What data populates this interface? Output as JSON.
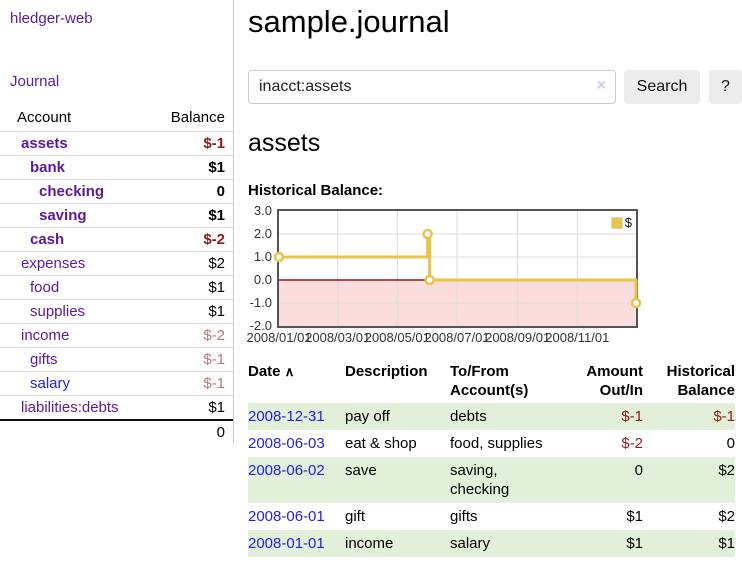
{
  "app": {
    "title": "hledger-web"
  },
  "colors": {
    "link_purple": "#5b1a9b",
    "link_blue": "#2323dd",
    "negative": "#8e1b1b",
    "faded_negative": "#bb7777",
    "stripe_green": "#e2efd9",
    "series_gold": "#e8c44a"
  },
  "sidebar": {
    "journal_link": "Journal",
    "table": {
      "account_header": "Account",
      "balance_header": "Balance",
      "accounts": [
        {
          "name": "assets",
          "balance": "$-1",
          "depth": 1
        },
        {
          "name": "bank",
          "balance": "$1",
          "depth": 2
        },
        {
          "name": "checking",
          "balance": "0",
          "depth": 3
        },
        {
          "name": "saving",
          "balance": "$1",
          "depth": 3
        },
        {
          "name": "cash",
          "balance": "$-2",
          "depth": 2
        },
        {
          "name": "expenses",
          "balance": "$2",
          "depth": 1
        },
        {
          "name": "food",
          "balance": "$1",
          "depth": 2
        },
        {
          "name": "supplies",
          "balance": "$1",
          "depth": 2
        },
        {
          "name": "income",
          "balance": "$-2",
          "depth": 1
        },
        {
          "name": "gifts",
          "balance": "$-1",
          "depth": 2
        },
        {
          "name": "salary",
          "balance": "$-1",
          "depth": 2
        },
        {
          "name": "liabilities:debts",
          "balance": "$1",
          "depth": 1
        }
      ],
      "total": "0"
    }
  },
  "main": {
    "title": "sample.journal",
    "search": {
      "value": "inacct:assets",
      "clear_icon": "×",
      "button_label": "Search",
      "help_label": "?"
    },
    "account_heading": "assets",
    "chart_label": "Historical Balance:"
  },
  "chart_data": {
    "type": "line",
    "step": true,
    "title": "Historical Balance",
    "series": [
      {
        "name": "$",
        "color": "#e8c44a",
        "points": [
          [
            "2008-01-01",
            1
          ],
          [
            "2008-06-01",
            2
          ],
          [
            "2008-06-03",
            0
          ],
          [
            "2008-12-31",
            -1
          ]
        ]
      }
    ],
    "ylim": [
      -2,
      3
    ],
    "yticks": [
      3.0,
      2.0,
      1.0,
      0.0,
      -1.0,
      -2.0
    ],
    "xticks": [
      "2008/01/01",
      "2008/03/01",
      "2008/05/01",
      "2008/07/01",
      "2008/09/01",
      "2008/11/01"
    ],
    "grid": true,
    "negative_fill": "#fbdddd",
    "zero_line_color": "#9e1414",
    "legend": {
      "position": "top-right",
      "label": "$"
    }
  },
  "register": {
    "headers": {
      "date": "Date",
      "sort_indicator": "∧",
      "description": "Description",
      "accounts": "To/From Account(s)",
      "amount": "Amount Out/In",
      "balance": "Historical Balance"
    },
    "rows": [
      {
        "date": "2008-12-31",
        "description": "pay off",
        "accounts": "debts",
        "amount": "$-1",
        "balance": "$-1"
      },
      {
        "date": "2008-06-03",
        "description": "eat & shop",
        "accounts": "food, supplies",
        "amount": "$-2",
        "balance": "0"
      },
      {
        "date": "2008-06-02",
        "description": "save",
        "accounts": "saving, checking",
        "amount": "0",
        "balance": "$2"
      },
      {
        "date": "2008-06-01",
        "description": "gift",
        "accounts": "gifts",
        "amount": "$1",
        "balance": "$2"
      },
      {
        "date": "2008-01-01",
        "description": "income",
        "accounts": "salary",
        "amount": "$1",
        "balance": "$1"
      }
    ]
  }
}
